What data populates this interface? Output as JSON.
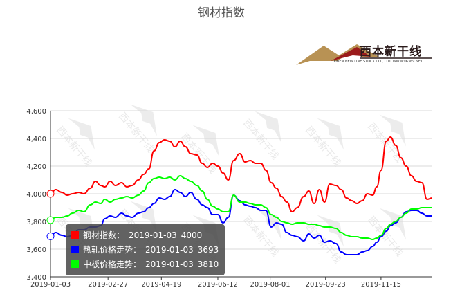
{
  "chart_data": {
    "type": "line",
    "title": "钢材指数",
    "xlabel": "",
    "ylabel": "",
    "ylim": [
      3400,
      4600
    ],
    "yticks": [
      3400,
      3600,
      3800,
      4000,
      4200,
      4400,
      4600
    ],
    "ytick_labels": [
      "3,400",
      "3,600",
      "3,800",
      "4,000",
      "4,200",
      "4,400",
      "4,600"
    ],
    "xtick_labels": [
      "2019-01-03",
      "2019-02-27",
      "2019-04-19",
      "2019-06-12",
      "2019-08-01",
      "2019-09-23",
      "2019-11-15"
    ],
    "grid": true,
    "series": [
      {
        "name": "钢材指数",
        "color": "#ff0000",
        "points": [
          [
            "2019-01-03",
            4000
          ],
          [
            "2019-01-08",
            4030
          ],
          [
            "2019-01-14",
            4010
          ],
          [
            "2019-01-19",
            3990
          ],
          [
            "2019-01-24",
            4000
          ],
          [
            "2019-01-30",
            4010
          ],
          [
            "2019-02-04",
            4000
          ],
          [
            "2019-02-10",
            4040
          ],
          [
            "2019-02-15",
            4090
          ],
          [
            "2019-02-20",
            4060
          ],
          [
            "2019-02-24",
            4050
          ],
          [
            "2019-03-01",
            4090
          ],
          [
            "2019-03-06",
            4060
          ],
          [
            "2019-03-12",
            4080
          ],
          [
            "2019-03-17",
            4050
          ],
          [
            "2019-03-22",
            4060
          ],
          [
            "2019-03-28",
            4100
          ],
          [
            "2019-04-02",
            4140
          ],
          [
            "2019-04-07",
            4180
          ],
          [
            "2019-04-12",
            4310
          ],
          [
            "2019-04-17",
            4370
          ],
          [
            "2019-04-22",
            4390
          ],
          [
            "2019-04-27",
            4380
          ],
          [
            "2019-05-02",
            4340
          ],
          [
            "2019-05-07",
            4380
          ],
          [
            "2019-05-12",
            4340
          ],
          [
            "2019-05-17",
            4290
          ],
          [
            "2019-05-23",
            4280
          ],
          [
            "2019-05-28",
            4220
          ],
          [
            "2019-06-02",
            4190
          ],
          [
            "2019-06-07",
            4220
          ],
          [
            "2019-06-12",
            4200
          ],
          [
            "2019-06-17",
            4150
          ],
          [
            "2019-06-22",
            4100
          ],
          [
            "2019-06-27",
            4240
          ],
          [
            "2019-07-03",
            4290
          ],
          [
            "2019-07-08",
            4230
          ],
          [
            "2019-07-13",
            4240
          ],
          [
            "2019-07-18",
            4220
          ],
          [
            "2019-07-23",
            4220
          ],
          [
            "2019-07-28",
            4170
          ],
          [
            "2019-08-02",
            4080
          ],
          [
            "2019-08-07",
            4040
          ],
          [
            "2019-08-12",
            3980
          ],
          [
            "2019-08-17",
            3940
          ],
          [
            "2019-08-22",
            3870
          ],
          [
            "2019-08-27",
            3900
          ],
          [
            "2019-09-02",
            3980
          ],
          [
            "2019-09-07",
            4020
          ],
          [
            "2019-09-12",
            3930
          ],
          [
            "2019-09-17",
            4030
          ],
          [
            "2019-09-22",
            3940
          ],
          [
            "2019-09-27",
            4070
          ],
          [
            "2019-10-03",
            4060
          ],
          [
            "2019-10-08",
            4030
          ],
          [
            "2019-10-13",
            3970
          ],
          [
            "2019-10-18",
            3950
          ],
          [
            "2019-10-23",
            3930
          ],
          [
            "2019-10-28",
            3950
          ],
          [
            "2019-11-02",
            4000
          ],
          [
            "2019-11-07",
            3990
          ],
          [
            "2019-11-11",
            4050
          ],
          [
            "2019-11-15",
            4170
          ],
          [
            "2019-11-20",
            4380
          ],
          [
            "2019-11-24",
            4410
          ],
          [
            "2019-11-29",
            4350
          ],
          [
            "2019-12-04",
            4260
          ],
          [
            "2019-12-09",
            4200
          ],
          [
            "2019-12-14",
            4130
          ],
          [
            "2019-12-19",
            4090
          ],
          [
            "2019-12-24",
            4080
          ],
          [
            "2019-12-29",
            3960
          ],
          [
            "2020-01-03",
            3970
          ]
        ]
      },
      {
        "name": "热轧价格走势",
        "color": "#0000ff",
        "points": [
          [
            "2019-01-03",
            3693
          ],
          [
            "2019-01-08",
            3720
          ],
          [
            "2019-01-14",
            3700
          ],
          [
            "2019-01-19",
            3690
          ],
          [
            "2019-01-24",
            3700
          ],
          [
            "2019-01-30",
            3740
          ],
          [
            "2019-02-04",
            3740
          ],
          [
            "2019-02-10",
            3760
          ],
          [
            "2019-02-15",
            3760
          ],
          [
            "2019-02-20",
            3770
          ],
          [
            "2019-02-24",
            3820
          ],
          [
            "2019-03-01",
            3840
          ],
          [
            "2019-03-06",
            3830
          ],
          [
            "2019-03-12",
            3860
          ],
          [
            "2019-03-17",
            3840
          ],
          [
            "2019-03-22",
            3830
          ],
          [
            "2019-03-28",
            3860
          ],
          [
            "2019-04-02",
            3870
          ],
          [
            "2019-04-07",
            3900
          ],
          [
            "2019-04-12",
            3930
          ],
          [
            "2019-04-17",
            3970
          ],
          [
            "2019-04-22",
            3960
          ],
          [
            "2019-04-27",
            3980
          ],
          [
            "2019-05-02",
            4030
          ],
          [
            "2019-05-07",
            4010
          ],
          [
            "2019-05-12",
            3980
          ],
          [
            "2019-05-17",
            4010
          ],
          [
            "2019-05-23",
            3960
          ],
          [
            "2019-05-28",
            3920
          ],
          [
            "2019-06-02",
            3900
          ],
          [
            "2019-06-07",
            3850
          ],
          [
            "2019-06-12",
            3850
          ],
          [
            "2019-06-17",
            3790
          ],
          [
            "2019-06-22",
            3830
          ],
          [
            "2019-06-27",
            3990
          ],
          [
            "2019-07-03",
            3950
          ],
          [
            "2019-07-08",
            3920
          ],
          [
            "2019-07-13",
            3910
          ],
          [
            "2019-07-18",
            3900
          ],
          [
            "2019-07-23",
            3880
          ],
          [
            "2019-07-28",
            3880
          ],
          [
            "2019-08-02",
            3760
          ],
          [
            "2019-08-07",
            3790
          ],
          [
            "2019-08-12",
            3780
          ],
          [
            "2019-08-17",
            3720
          ],
          [
            "2019-08-22",
            3700
          ],
          [
            "2019-08-27",
            3690
          ],
          [
            "2019-09-02",
            3660
          ],
          [
            "2019-09-07",
            3710
          ],
          [
            "2019-09-12",
            3680
          ],
          [
            "2019-09-17",
            3700
          ],
          [
            "2019-09-22",
            3650
          ],
          [
            "2019-09-27",
            3660
          ],
          [
            "2019-10-03",
            3640
          ],
          [
            "2019-10-08",
            3580
          ],
          [
            "2019-10-13",
            3560
          ],
          [
            "2019-10-18",
            3560
          ],
          [
            "2019-10-23",
            3560
          ],
          [
            "2019-10-28",
            3580
          ],
          [
            "2019-11-02",
            3590
          ],
          [
            "2019-11-07",
            3620
          ],
          [
            "2019-11-11",
            3650
          ],
          [
            "2019-11-15",
            3690
          ],
          [
            "2019-11-20",
            3730
          ],
          [
            "2019-11-24",
            3770
          ],
          [
            "2019-11-29",
            3790
          ],
          [
            "2019-12-04",
            3830
          ],
          [
            "2019-12-09",
            3870
          ],
          [
            "2019-12-14",
            3880
          ],
          [
            "2019-12-19",
            3880
          ],
          [
            "2019-12-24",
            3860
          ],
          [
            "2019-12-29",
            3840
          ],
          [
            "2020-01-03",
            3840
          ]
        ]
      },
      {
        "name": "中板价格走势",
        "color": "#00ff00",
        "points": [
          [
            "2019-01-03",
            3810
          ],
          [
            "2019-01-08",
            3830
          ],
          [
            "2019-01-14",
            3830
          ],
          [
            "2019-01-19",
            3840
          ],
          [
            "2019-01-24",
            3860
          ],
          [
            "2019-01-30",
            3880
          ],
          [
            "2019-02-04",
            3870
          ],
          [
            "2019-02-10",
            3920
          ],
          [
            "2019-02-15",
            3940
          ],
          [
            "2019-02-20",
            3930
          ],
          [
            "2019-02-24",
            3960
          ],
          [
            "2019-03-01",
            3940
          ],
          [
            "2019-03-06",
            3960
          ],
          [
            "2019-03-12",
            3970
          ],
          [
            "2019-03-17",
            3980
          ],
          [
            "2019-03-22",
            3970
          ],
          [
            "2019-03-28",
            3990
          ],
          [
            "2019-04-02",
            4020
          ],
          [
            "2019-04-07",
            4080
          ],
          [
            "2019-04-12",
            4110
          ],
          [
            "2019-04-17",
            4120
          ],
          [
            "2019-04-22",
            4110
          ],
          [
            "2019-04-27",
            4120
          ],
          [
            "2019-05-02",
            4100
          ],
          [
            "2019-05-07",
            4130
          ],
          [
            "2019-05-12",
            4110
          ],
          [
            "2019-05-17",
            4090
          ],
          [
            "2019-05-23",
            4060
          ],
          [
            "2019-05-28",
            4020
          ],
          [
            "2019-06-02",
            3960
          ],
          [
            "2019-06-07",
            3910
          ],
          [
            "2019-06-12",
            3890
          ],
          [
            "2019-06-17",
            3870
          ],
          [
            "2019-06-22",
            3870
          ],
          [
            "2019-06-27",
            3990
          ],
          [
            "2019-07-03",
            3940
          ],
          [
            "2019-07-08",
            3940
          ],
          [
            "2019-07-13",
            3930
          ],
          [
            "2019-07-18",
            3920
          ],
          [
            "2019-07-23",
            3920
          ],
          [
            "2019-07-28",
            3900
          ],
          [
            "2019-08-02",
            3850
          ],
          [
            "2019-08-07",
            3830
          ],
          [
            "2019-08-12",
            3800
          ],
          [
            "2019-08-17",
            3790
          ],
          [
            "2019-08-22",
            3780
          ],
          [
            "2019-08-27",
            3790
          ],
          [
            "2019-09-02",
            3790
          ],
          [
            "2019-09-07",
            3780
          ],
          [
            "2019-09-12",
            3780
          ],
          [
            "2019-09-17",
            3770
          ],
          [
            "2019-09-22",
            3760
          ],
          [
            "2019-09-27",
            3760
          ],
          [
            "2019-10-03",
            3750
          ],
          [
            "2019-10-08",
            3720
          ],
          [
            "2019-10-13",
            3700
          ],
          [
            "2019-10-18",
            3690
          ],
          [
            "2019-10-23",
            3690
          ],
          [
            "2019-10-28",
            3680
          ],
          [
            "2019-11-02",
            3680
          ],
          [
            "2019-11-07",
            3670
          ],
          [
            "2019-11-11",
            3680
          ],
          [
            "2019-11-15",
            3700
          ],
          [
            "2019-11-20",
            3750
          ],
          [
            "2019-11-24",
            3780
          ],
          [
            "2019-11-29",
            3800
          ],
          [
            "2019-12-04",
            3830
          ],
          [
            "2019-12-09",
            3860
          ],
          [
            "2019-12-14",
            3890
          ],
          [
            "2019-12-19",
            3890
          ],
          [
            "2019-12-24",
            3900
          ],
          [
            "2019-12-29",
            3900
          ],
          [
            "2020-01-03",
            3900
          ]
        ]
      }
    ],
    "tooltip": {
      "date": "2019-01-03",
      "entries": [
        {
          "label": "钢材指数：",
          "date": "2019-01-03",
          "value": "4000",
          "color": "#ff0000"
        },
        {
          "label": "热轧价格走势：",
          "date": "2019-01-03",
          "value": "3693",
          "color": "#0000ff"
        },
        {
          "label": "中板价格走势：",
          "date": "2019-01-03",
          "value": "3810",
          "color": "#00ff00"
        }
      ]
    }
  },
  "logo": {
    "text": "西本新干线",
    "subtext": "XIBEN NEW LINE STOCK CO., LTD.    WWW.96369.NET",
    "watermark_text": "西本新干线"
  }
}
